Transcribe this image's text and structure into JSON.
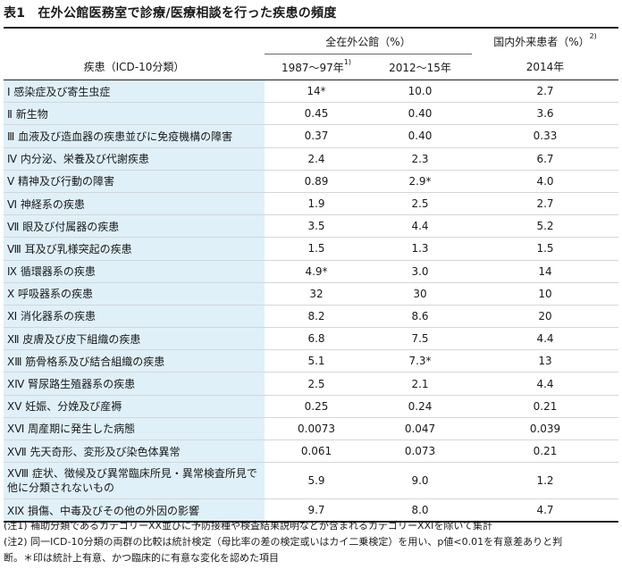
{
  "title": {
    "number": "表1",
    "text": "在外公館医務室で診療/医療相談を行った疾患の頻度"
  },
  "header": {
    "group_overseas": "全在外公館（%）",
    "group_domestic": "国内外来患者（%）",
    "group_domestic_sup": "2)",
    "disease_col": "疾患（ICD-10分類）",
    "period1": "1987～97年",
    "period1_sup": "1)",
    "period2": "2012～15年",
    "period3": "2014年"
  },
  "rows": [
    {
      "label": "Ⅰ 感染症及び寄生虫症",
      "v1": "14*",
      "v2": "10.0",
      "v3": "2.7"
    },
    {
      "label": "Ⅱ 新生物",
      "v1": "0.45",
      "v2": "0.40",
      "v3": "3.6"
    },
    {
      "label": "Ⅲ 血液及び造血器の疾患並びに免疫機構の障害",
      "v1": "0.37",
      "v2": "0.40",
      "v3": "0.33"
    },
    {
      "label": "Ⅳ 内分泌、栄養及び代謝疾患",
      "v1": "2.4",
      "v2": "2.3",
      "v3": "6.7"
    },
    {
      "label": "Ⅴ 精神及び行動の障害",
      "v1": "0.89",
      "v2": "2.9*",
      "v3": "4.0"
    },
    {
      "label": "Ⅵ 神経系の疾患",
      "v1": "1.9",
      "v2": "2.5",
      "v3": "2.7"
    },
    {
      "label": "Ⅶ 眼及び付属器の疾患",
      "v1": "3.5",
      "v2": "4.4",
      "v3": "5.2"
    },
    {
      "label": "Ⅷ 耳及び乳様突起の疾患",
      "v1": "1.5",
      "v2": "1.3",
      "v3": "1.5"
    },
    {
      "label": "Ⅸ 循環器系の疾患",
      "v1": "4.9*",
      "v2": "3.0",
      "v3": "14"
    },
    {
      "label": "Ⅹ 呼吸器系の疾患",
      "v1": "32",
      "v2": "30",
      "v3": "10"
    },
    {
      "label": "Ⅺ 消化器系の疾患",
      "v1": "8.2",
      "v2": "8.6",
      "v3": "20"
    },
    {
      "label": "Ⅻ 皮膚及び皮下組織の疾患",
      "v1": "6.8",
      "v2": "7.5",
      "v3": "4.4"
    },
    {
      "label": "ⅩⅢ 筋骨格系及び結合組織の疾患",
      "v1": "5.1",
      "v2": "7.3*",
      "v3": "13"
    },
    {
      "label": "ⅩⅣ 腎尿路生殖器系の疾患",
      "v1": "2.5",
      "v2": "2.1",
      "v3": "4.4"
    },
    {
      "label": "ⅩⅤ 妊娠、分娩及び産褥",
      "v1": "0.25",
      "v2": "0.24",
      "v3": "0.21"
    },
    {
      "label": "ⅩⅥ 周産期に発生した病態",
      "v1": "0.0073",
      "v2": "0.047",
      "v3": "0.039"
    },
    {
      "label": "ⅩⅦ 先天奇形、変形及び染色体異常",
      "v1": "0.061",
      "v2": "0.073",
      "v3": "0.21"
    },
    {
      "label": "ⅩⅧ 症状、徴候及び異常臨床所見・異常検査所見で他に分類されないもの",
      "v1": "5.9",
      "v2": "9.0",
      "v3": "1.2"
    },
    {
      "label": "ⅩⅨ 損傷、中毒及びその他の外因の影響",
      "v1": "9.7",
      "v2": "8.0",
      "v3": "4.7"
    }
  ],
  "notes": [
    "(注1) 補助分類であるカテゴリーXX並びに予防接種や検査結果説明などが含まれるカテゴリーXXIを除いて集計",
    "(注2) 同一ICD-10分類の両群の比較は統計検定（母比率の差の検定或いはカイ二乗検定）を用い、p値<0.01を有意差ありと判",
    "断。＊印は統計上有意、かつ臨床的に有意な変化を認めた項目"
  ]
}
